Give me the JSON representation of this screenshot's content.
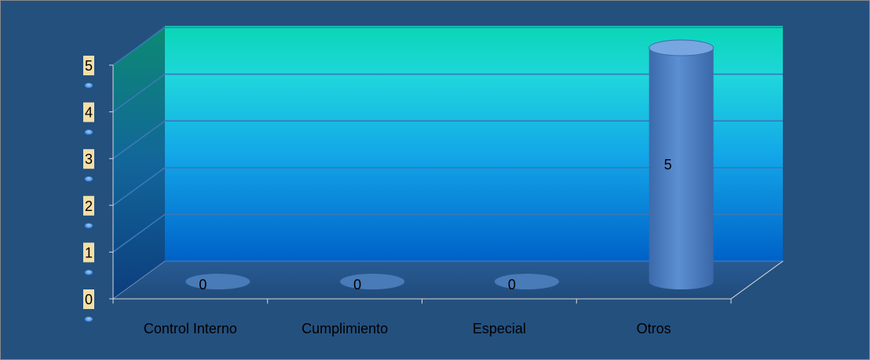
{
  "chart_data": {
    "type": "bar",
    "categories": [
      "Control Interno",
      "Cumplimiento",
      "Especial",
      "Otros"
    ],
    "values": [
      0,
      0,
      0,
      5
    ],
    "data_labels": [
      "0",
      "0",
      "0",
      "5"
    ],
    "y_ticks": [
      "0",
      "1",
      "2",
      "3",
      "4",
      "5"
    ],
    "ylim": [
      0,
      5
    ],
    "grid": true,
    "legend": "none",
    "colors": {
      "background": "#24507e",
      "wall_top": "#0ad6b6",
      "wall_mid": "#20c8e6",
      "wall_bottom": "#0066cc",
      "bar": "#4a7fc4",
      "bar_highlight": "#78a6e0",
      "tick_label_bg": "#f4dfa8",
      "tick_bead": "#4aa3ff",
      "axis": "#d8d8d8",
      "text": "#000000"
    }
  }
}
